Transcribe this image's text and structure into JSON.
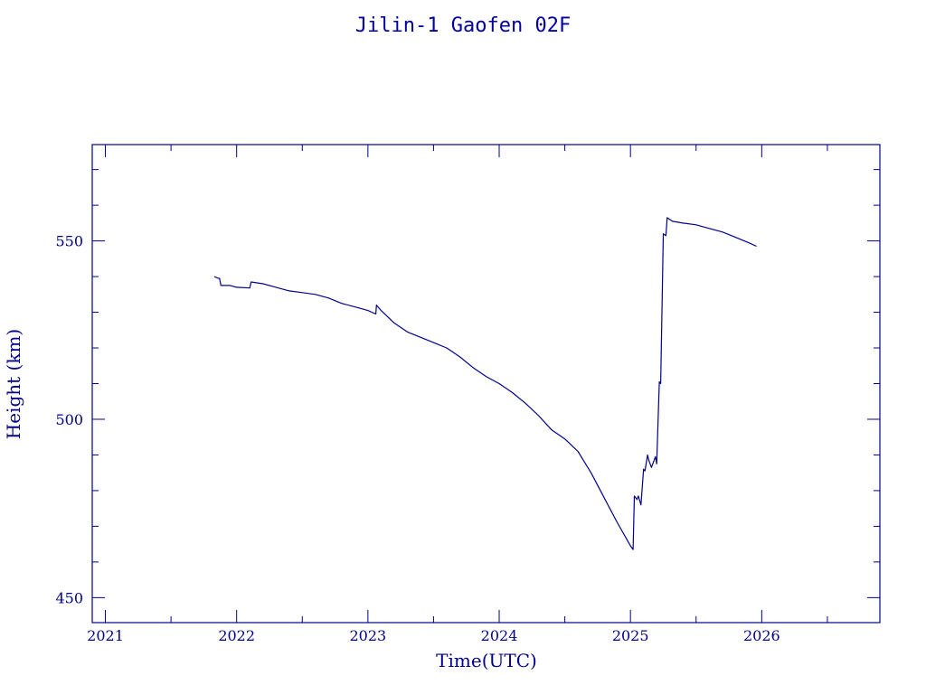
{
  "chart_data": {
    "type": "line",
    "title": "Jilin-1 Gaofen 02F",
    "xlabel": "Time(UTC)",
    "ylabel": "Height (km)",
    "xlim": [
      2020.9,
      2026.9
    ],
    "ylim": [
      443,
      577
    ],
    "x_ticks": [
      2021,
      2022,
      2023,
      2024,
      2025,
      2026
    ],
    "y_ticks": [
      450,
      500,
      550
    ],
    "grid": false,
    "line_color": "#00008b",
    "series": [
      {
        "x": [
          2021.83,
          2021.86,
          2021.87,
          2021.88,
          2021.95,
          2022.0,
          2022.1,
          2022.11,
          2022.2,
          2022.3,
          2022.4,
          2022.5,
          2022.6,
          2022.7,
          2022.8,
          2022.9,
          2023.0,
          2023.06,
          2023.065,
          2023.1,
          2023.2,
          2023.3,
          2023.4,
          2023.5,
          2023.6,
          2023.7,
          2023.8,
          2023.9,
          2024.0,
          2024.1,
          2024.2,
          2024.3,
          2024.4,
          2024.5,
          2024.6,
          2024.7,
          2024.8,
          2024.9,
          2025.0,
          2025.02,
          2025.03,
          2025.05,
          2025.06,
          2025.08,
          2025.1,
          2025.11,
          2025.13,
          2025.14,
          2025.16,
          2025.19,
          2025.2,
          2025.22,
          2025.23,
          2025.24,
          2025.25,
          2025.27,
          2025.28,
          2025.3,
          2025.32,
          2025.4,
          2025.5,
          2025.6,
          2025.7,
          2025.8,
          2025.9,
          2025.96
        ],
        "y": [
          540,
          539.5,
          539.5,
          537.5,
          537.5,
          537,
          536.8,
          538.5,
          538,
          537,
          536,
          535.5,
          535,
          534,
          532.5,
          531.5,
          530.5,
          529.5,
          532,
          530.5,
          527,
          524.5,
          523,
          521.5,
          520,
          517.5,
          514.5,
          512,
          510,
          507.5,
          504.5,
          501,
          497,
          494.5,
          491,
          485,
          478,
          471,
          464.5,
          463.5,
          478.5,
          477.5,
          478.5,
          476,
          486,
          485.5,
          490,
          488.5,
          486.5,
          489.5,
          487.5,
          510.5,
          510,
          530,
          552,
          551.5,
          556.5,
          556,
          555.5,
          555,
          554.5,
          553.5,
          552.5,
          551,
          549.5,
          548.5
        ]
      }
    ]
  }
}
